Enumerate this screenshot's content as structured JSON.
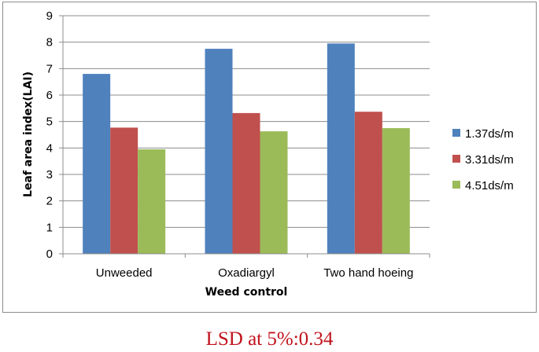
{
  "chart_data": {
    "type": "bar",
    "categories": [
      "Unweeded",
      "Oxadiargyl",
      "Two hand hoeing"
    ],
    "series": [
      {
        "name": "1.37ds/m",
        "color": "#4f81bd",
        "values": [
          6.8,
          7.75,
          7.95
        ]
      },
      {
        "name": "3.31ds/m",
        "color": "#c0504d",
        "values": [
          4.77,
          5.32,
          5.37
        ]
      },
      {
        "name": "4.51ds/m",
        "color": "#9bbb59",
        "values": [
          3.95,
          4.63,
          4.75
        ]
      }
    ],
    "title": "",
    "xlabel": "Weed control",
    "ylabel": "Leaf area index(LAI)",
    "ylim": [
      0,
      9
    ],
    "yticks": [
      "0",
      "1",
      "2",
      "3",
      "4",
      "5",
      "6",
      "7",
      "8",
      "9"
    ],
    "grid": true,
    "legend_position": "right"
  },
  "footnote": "LSD at 5%:0.34"
}
